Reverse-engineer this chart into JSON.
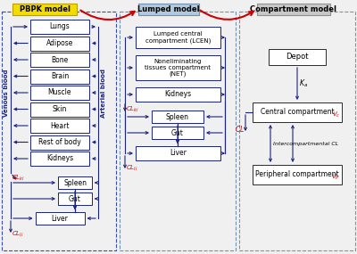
{
  "fig_width": 4.0,
  "fig_height": 2.85,
  "dpi": 100,
  "bg_color": "#f0f0f0",
  "box_edge": "#1a237e",
  "arrow_color": "#1a237e",
  "cl_color": "#cc0000",
  "title_colors": [
    "#f5dc00",
    "#b0c8e0",
    "#c8c8c8"
  ],
  "title_edge_colors": [
    "#b8a000",
    "#7090b0",
    "#909090"
  ],
  "panel_titles": [
    "PBPK model",
    "Lumped model",
    "Compartment model"
  ],
  "pbpk_organs": [
    "Lungs",
    "Adipose",
    "Bone",
    "Brain",
    "Muscle",
    "Skin",
    "Heart",
    "Rest of body",
    "Kidneys"
  ],
  "lumped_boxes_top": [
    "Lumped central\ncompartment (LCEN)",
    "Noneliminating\ntissues compartment\n(NET)",
    "Kidneys"
  ],
  "lumped_spleen_gut": [
    "Spleen",
    "Gut"
  ],
  "lumped_liver": "Liver",
  "comp_boxes": [
    "Depot",
    "Central compartment",
    "Peripheral compartment"
  ],
  "vc_label": "$V_c$",
  "vp_label": "$V_P$",
  "ka_label": "$K_a$",
  "cl_label": "$CL$",
  "intercomp_label": "Intercompartmental CL",
  "clki_label": "$CL_{ki}$",
  "clli_label": "$CL_{li}$"
}
